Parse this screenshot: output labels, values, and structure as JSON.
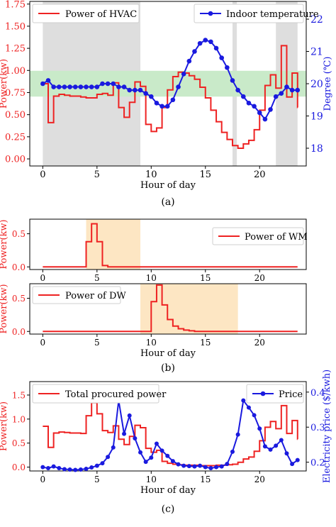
{
  "panel_labels": [
    "(a)",
    "(b)",
    "(c)"
  ],
  "colors": {
    "red": "#ee2222",
    "blue": "#1a1adf",
    "gray_shade": "#dedede",
    "green_band": "#c9eac9",
    "orange_shade": "#fde6c3",
    "black": "#000000"
  },
  "chart_data": [
    {
      "type": "line",
      "xlabel": "Hour of day",
      "ylabel": "Power(kw)",
      "y2label": "Degree (℃)",
      "xlim": [
        -1.2,
        24.3
      ],
      "ylim": [
        -0.08,
        1.78
      ],
      "y2lim": [
        17.45,
        22.55
      ],
      "xticks": [
        0,
        5,
        10,
        15,
        20
      ],
      "yticks": [
        0.0,
        0.25,
        0.5,
        0.75,
        1.0,
        1.25,
        1.5,
        1.75
      ],
      "ytick_labels": [
        "0.00",
        "0.25",
        "0.50",
        "0.75",
        "1.00",
        "1.25",
        "1.50",
        "1.75"
      ],
      "y2ticks": [
        18,
        19,
        20,
        21,
        22
      ],
      "ytick2_labels": [
        "18",
        "19",
        "20",
        "21",
        "22"
      ],
      "legend": {
        "left": "Power of HVAC",
        "right": "Indoor temperature"
      },
      "shaded_x": [
        [
          0,
          9
        ],
        [
          17.5,
          17.9
        ],
        [
          21.5,
          23.5
        ]
      ],
      "comfort_band_y2": [
        19.6,
        20.4
      ],
      "series": [
        {
          "name": "Power of HVAC",
          "style": "step",
          "x": [
            0,
            0.5,
            1,
            1.5,
            2,
            2.5,
            3,
            3.5,
            4,
            4.5,
            5,
            5.5,
            6,
            6.5,
            7,
            7.5,
            8,
            8.5,
            9,
            9.5,
            10,
            10.5,
            11,
            11.5,
            12,
            12.5,
            13,
            13.5,
            14,
            14.5,
            15,
            15.5,
            16,
            16.5,
            17,
            17.5,
            18,
            18.5,
            19,
            19.5,
            20,
            20.5,
            21,
            21.5,
            22,
            22.5,
            23,
            23.5
          ],
          "values": [
            0.85,
            0.41,
            0.71,
            0.73,
            0.72,
            0.71,
            0.71,
            0.7,
            0.69,
            0.69,
            0.73,
            0.74,
            0.72,
            0.86,
            0.58,
            0.47,
            0.64,
            0.87,
            0.82,
            0.39,
            0.31,
            0.35,
            0.58,
            0.78,
            0.93,
            0.98,
            0.97,
            0.94,
            0.9,
            0.81,
            0.69,
            0.55,
            0.42,
            0.3,
            0.22,
            0.15,
            0.12,
            0.17,
            0.21,
            0.33,
            0.55,
            0.83,
            0.95,
            0.8,
            1.28,
            0.7,
            0.97,
            0.58
          ]
        },
        {
          "name": "Indoor temperature",
          "style": "line",
          "axis": "right",
          "x": [
            0,
            0.5,
            1,
            1.5,
            2,
            2.5,
            3,
            3.5,
            4,
            4.5,
            5,
            5.5,
            6,
            6.5,
            7,
            7.5,
            8,
            8.5,
            9,
            9.5,
            10,
            10.5,
            11,
            11.5,
            12,
            12.5,
            13,
            13.5,
            14,
            14.5,
            15,
            15.5,
            16,
            16.5,
            17,
            17.5,
            18,
            18.5,
            19,
            19.5,
            20,
            20.5,
            21,
            21.5,
            22,
            22.5,
            23,
            23.5
          ],
          "values": [
            20.0,
            20.1,
            19.9,
            19.9,
            19.9,
            19.9,
            19.9,
            19.9,
            19.9,
            19.9,
            19.9,
            20.0,
            20.0,
            20.0,
            19.9,
            19.9,
            19.8,
            19.8,
            19.8,
            19.7,
            19.6,
            19.4,
            19.3,
            19.3,
            19.5,
            19.9,
            20.3,
            20.7,
            21.0,
            21.25,
            21.35,
            21.3,
            21.1,
            20.8,
            20.5,
            20.1,
            19.8,
            19.6,
            19.4,
            19.3,
            19.1,
            18.9,
            19.2,
            19.6,
            19.7,
            19.9,
            19.8,
            19.8
          ]
        }
      ]
    },
    {
      "type": "line",
      "ylabel": "Power(kw)",
      "xlim": [
        -1.2,
        24.3
      ],
      "ylim": [
        -0.04,
        0.72
      ],
      "xticks": [
        0,
        5,
        10,
        15,
        20
      ],
      "yticks": [
        0.0,
        0.5
      ],
      "ytick_labels": [
        "0.0",
        "0.5"
      ],
      "legend": "Power of WM",
      "shaded_x": [
        [
          4,
          9
        ]
      ],
      "series": [
        {
          "name": "Power of WM",
          "style": "step",
          "x": [
            0,
            4,
            4.5,
            5,
            5.5,
            6,
            23.5
          ],
          "values": [
            0.0,
            0.38,
            0.65,
            0.38,
            0.02,
            0.0,
            0.0
          ]
        }
      ]
    },
    {
      "type": "line",
      "xlabel": "Hour of day",
      "ylabel": "Power(kw)",
      "xlim": [
        -1.2,
        24.3
      ],
      "ylim": [
        -0.04,
        0.72
      ],
      "xticks": [
        0,
        5,
        10,
        15,
        20
      ],
      "yticks": [
        0.0,
        0.5
      ],
      "ytick_labels": [
        "0.0",
        "0.5"
      ],
      "legend": "Power of DW",
      "shaded_x": [
        [
          9,
          18
        ]
      ],
      "series": [
        {
          "name": "Power of DW",
          "style": "step",
          "x": [
            0,
            10,
            10.5,
            11,
            11.5,
            12,
            12.5,
            13,
            13.5,
            14,
            23.5
          ],
          "values": [
            0.0,
            0.45,
            0.7,
            0.4,
            0.18,
            0.08,
            0.04,
            0.02,
            0.01,
            0.0,
            0.0
          ]
        }
      ]
    },
    {
      "type": "line",
      "xlabel": "Hour of day",
      "ylabel": "Power(kw)",
      "y2label": "Electricity price ($/kwh)",
      "xlim": [
        -1.2,
        24.3
      ],
      "ylim": [
        -0.08,
        1.78
      ],
      "y2lim": [
        0.175,
        0.43
      ],
      "xticks": [
        0,
        5,
        10,
        15,
        20
      ],
      "yticks": [
        0.0,
        0.5,
        1.0,
        1.5
      ],
      "ytick_labels": [
        "0.0",
        "0.5",
        "1.0",
        "1.5"
      ],
      "y2ticks": [
        0.2,
        0.3,
        0.4
      ],
      "ytick2_labels": [
        "0.2",
        "0.3",
        "0.4"
      ],
      "legend": {
        "left": "Total procured power",
        "right": "Price"
      },
      "series": [
        {
          "name": "Total procured power",
          "style": "step",
          "x": [
            0,
            0.5,
            1,
            1.5,
            2,
            2.5,
            3,
            3.5,
            4,
            4.5,
            5,
            5.5,
            6,
            6.5,
            7,
            7.5,
            8,
            8.5,
            9,
            9.5,
            10,
            10.5,
            11,
            11.5,
            12,
            12.5,
            13,
            13.5,
            14,
            14.5,
            15,
            15.5,
            16,
            16.5,
            17,
            17.5,
            18,
            18.5,
            19,
            19.5,
            20,
            20.5,
            21,
            21.5,
            22,
            22.5,
            23,
            23.5
          ],
          "values": [
            0.85,
            0.41,
            0.71,
            0.73,
            0.72,
            0.71,
            0.71,
            0.7,
            1.07,
            1.34,
            1.11,
            0.76,
            0.72,
            0.86,
            0.58,
            0.47,
            0.64,
            0.87,
            0.82,
            0.39,
            0.31,
            0.35,
            0.12,
            0.08,
            0.06,
            0.05,
            0.04,
            0.04,
            0.04,
            0.03,
            0.03,
            0.03,
            0.04,
            0.04,
            0.05,
            0.06,
            0.1,
            0.17,
            0.21,
            0.33,
            0.55,
            0.83,
            0.95,
            0.8,
            1.28,
            0.7,
            0.97,
            0.58
          ]
        },
        {
          "name": "Price",
          "style": "line",
          "axis": "right",
          "x": [
            0,
            0.5,
            1,
            1.5,
            2,
            2.5,
            3,
            3.5,
            4,
            4.5,
            5,
            5.5,
            6,
            6.5,
            7,
            7.5,
            8,
            8.5,
            9,
            9.5,
            10,
            10.5,
            11,
            11.5,
            12,
            12.5,
            13,
            13.5,
            14,
            14.5,
            15,
            15.5,
            16,
            16.5,
            17,
            17.5,
            18,
            18.5,
            19,
            19.5,
            20,
            20.5,
            21,
            21.5,
            22,
            22.5,
            23,
            23.5
          ],
          "values": [
            0.186,
            0.183,
            0.188,
            0.183,
            0.18,
            0.179,
            0.178,
            0.179,
            0.181,
            0.185,
            0.19,
            0.197,
            0.215,
            0.242,
            0.376,
            0.281,
            0.333,
            0.268,
            0.228,
            0.201,
            0.213,
            0.253,
            0.233,
            0.218,
            0.203,
            0.194,
            0.19,
            0.189,
            0.188,
            0.19,
            0.186,
            0.183,
            0.186,
            0.188,
            0.195,
            0.23,
            0.279,
            0.376,
            0.356,
            0.334,
            0.296,
            0.245,
            0.236,
            0.247,
            0.263,
            0.225,
            0.195,
            0.206
          ]
        }
      ]
    }
  ]
}
